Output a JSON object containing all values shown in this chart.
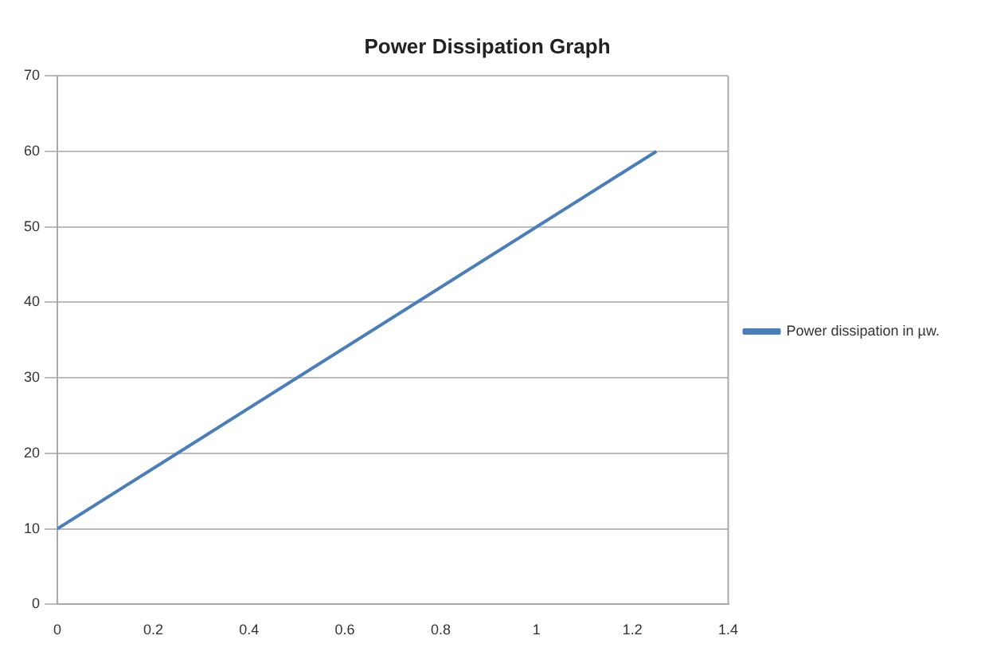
{
  "chart_data": {
    "type": "line",
    "title": "Power Dissipation Graph",
    "x": [
      0,
      1.25
    ],
    "series": [
      {
        "name": "Power dissipation in µw.",
        "color": "#4a7ebb",
        "values": [
          10,
          60
        ]
      }
    ],
    "xlim": [
      0,
      1.4
    ],
    "xticks": [
      0,
      0.2,
      0.4,
      0.6,
      0.8,
      1,
      1.2,
      1.4
    ],
    "ylim": [
      0,
      70
    ],
    "yticks": [
      0,
      10,
      20,
      30,
      40,
      50,
      60,
      70
    ],
    "grid": "y",
    "legend": "right",
    "marker": "none",
    "line_style": "solid"
  }
}
